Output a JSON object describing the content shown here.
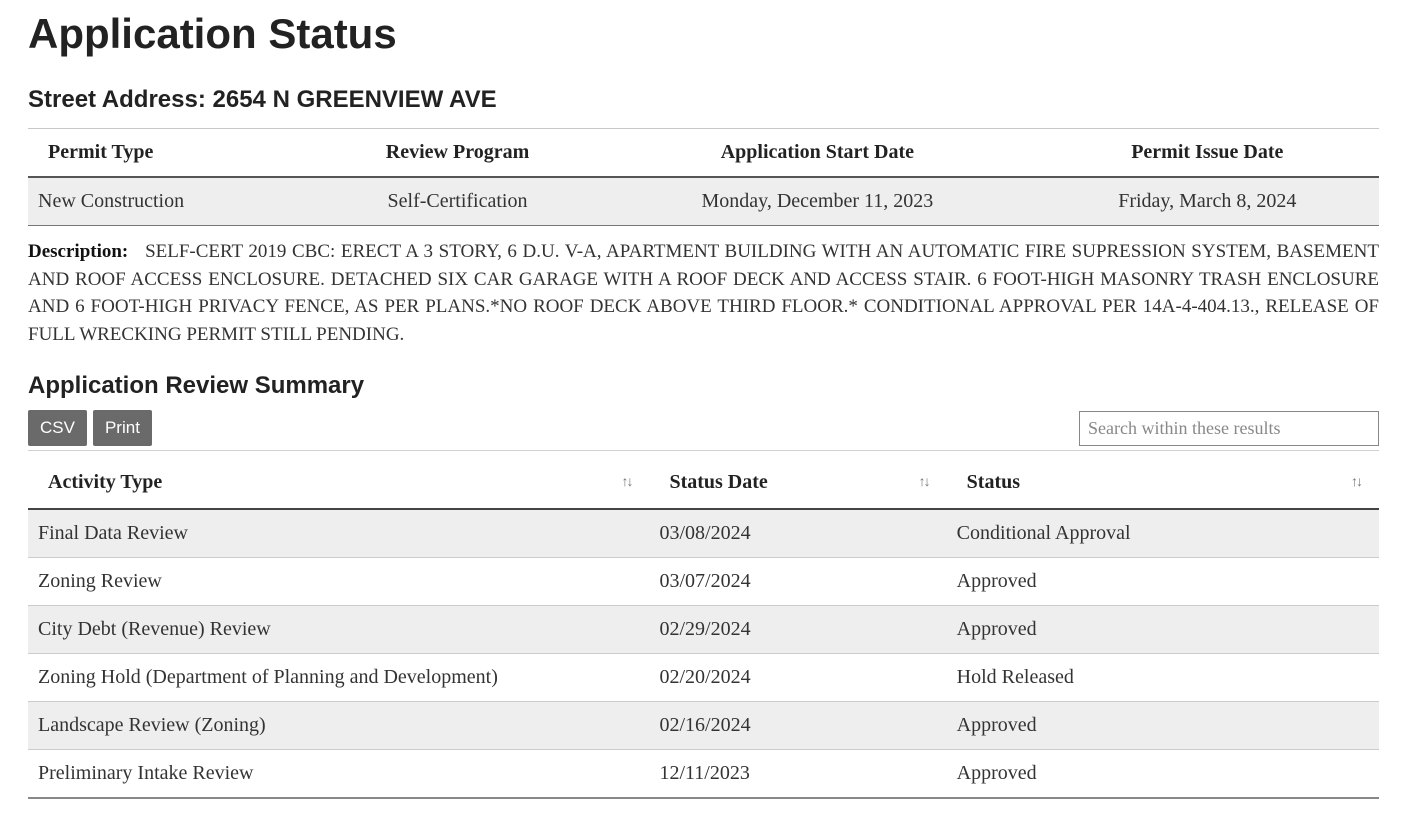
{
  "page": {
    "title": "Application Status"
  },
  "address": {
    "label": "Street Address:",
    "value": "2654 N GREENVIEW AVE"
  },
  "top_table": {
    "headers": {
      "permit_type": "Permit Type",
      "review_program": "Review Program",
      "start_date": "Application Start Date",
      "issue_date": "Permit Issue Date"
    },
    "row": {
      "permit_type": "New Construction",
      "review_program": "Self-Certification",
      "start_date": "Monday, December 11, 2023",
      "issue_date": "Friday, March 8, 2024"
    }
  },
  "description": {
    "label": "Description:",
    "text": "SELF-CERT 2019 CBC: ERECT A 3 STORY, 6 D.U. V-A, APARTMENT BUILDING WITH AN AUTOMATIC FIRE SUPRESSION SYSTEM, BASEMENT AND ROOF ACCESS ENCLOSURE. DETACHED SIX CAR GARAGE WITH A ROOF DECK AND ACCESS STAIR. 6 FOOT-HIGH MASONRY TRASH ENCLOSURE AND 6 FOOT-HIGH PRIVACY FENCE, AS PER PLANS.*NO ROOF DECK ABOVE THIRD FLOOR.* CONDITIONAL APPROVAL PER 14A-4-404.13., RELEASE OF FULL WRECKING PERMIT STILL PENDING."
  },
  "summary": {
    "title": "Application Review Summary",
    "buttons": {
      "csv": "CSV",
      "print": "Print"
    },
    "search_placeholder": "Search within these results",
    "headers": {
      "activity_type": "Activity Type",
      "status_date": "Status Date",
      "status": "Status"
    },
    "rows": [
      {
        "activity": "Final Data Review",
        "date": "03/08/2024",
        "status": "Conditional Approval"
      },
      {
        "activity": "Zoning Review",
        "date": "03/07/2024",
        "status": "Approved"
      },
      {
        "activity": "City Debt (Revenue) Review",
        "date": "02/29/2024",
        "status": "Approved"
      },
      {
        "activity": "Zoning Hold (Department of Planning and Development)",
        "date": "02/20/2024",
        "status": "Hold Released"
      },
      {
        "activity": "Landscape Review (Zoning)",
        "date": "02/16/2024",
        "status": "Approved"
      },
      {
        "activity": "Preliminary Intake Review",
        "date": "12/11/2023",
        "status": "Approved"
      }
    ]
  },
  "colors": {
    "header_gray": "#eeeeee",
    "border_dark": "#444444",
    "btn_bg": "#6a6a6a"
  }
}
